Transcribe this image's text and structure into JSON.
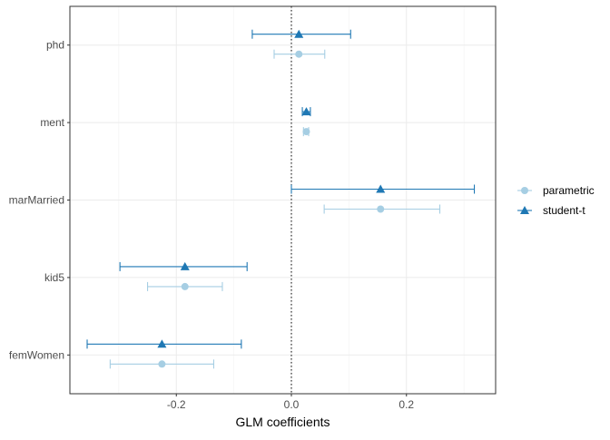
{
  "chart_data": {
    "type": "scatter",
    "subtype": "coefficient-plot-with-error-bars",
    "title": "",
    "xlabel": "GLM coefficients",
    "ylabel": "",
    "xlim": [
      -0.385,
      0.355
    ],
    "x_ticks": [
      -0.2,
      0.0,
      0.2
    ],
    "x_tick_labels": [
      "-0.2",
      "0.0",
      "0.2"
    ],
    "categories": [
      "phd",
      "ment",
      "marMarried",
      "kid5",
      "femWomen"
    ],
    "reference_line": {
      "x": 0,
      "style": "dotted",
      "color": "#000000"
    },
    "grid": true,
    "legend_position": "right",
    "series": [
      {
        "name": "parametric",
        "marker": "circle",
        "color": "#A6CEE3",
        "points": [
          {
            "category": "phd",
            "estimate": 0.013,
            "lower": -0.03,
            "upper": 0.058
          },
          {
            "category": "ment",
            "estimate": 0.026,
            "lower": 0.021,
            "upper": 0.03
          },
          {
            "category": "marMarried",
            "estimate": 0.155,
            "lower": 0.057,
            "upper": 0.258
          },
          {
            "category": "kid5",
            "estimate": -0.185,
            "lower": -0.25,
            "upper": -0.12
          },
          {
            "category": "femWomen",
            "estimate": -0.225,
            "lower": -0.315,
            "upper": -0.135
          }
        ]
      },
      {
        "name": "student-t",
        "marker": "triangle",
        "color": "#1F78B4",
        "points": [
          {
            "category": "phd",
            "estimate": 0.013,
            "lower": -0.068,
            "upper": 0.103
          },
          {
            "category": "ment",
            "estimate": 0.026,
            "lower": 0.019,
            "upper": 0.033
          },
          {
            "category": "marMarried",
            "estimate": 0.155,
            "lower": 0.0,
            "upper": 0.318
          },
          {
            "category": "kid5",
            "estimate": -0.185,
            "lower": -0.298,
            "upper": -0.077
          },
          {
            "category": "femWomen",
            "estimate": -0.225,
            "lower": -0.355,
            "upper": -0.087
          }
        ]
      }
    ]
  }
}
